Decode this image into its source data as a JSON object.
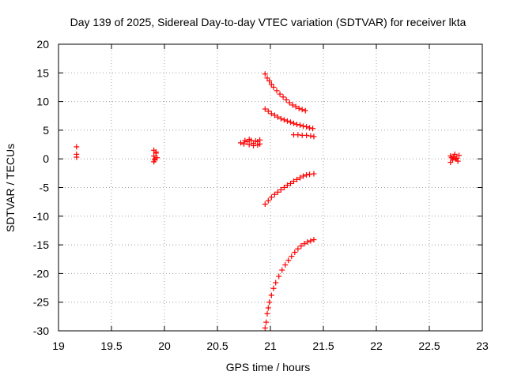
{
  "chart_data": {
    "type": "scatter",
    "title": "Day 139 of 2025, Sidereal Day-to-day VTEC variation (SDTVAR) for receiver lkta",
    "xlabel": "GPS time / hours",
    "ylabel": "SDTVAR / TECUs",
    "xlim": [
      19,
      23
    ],
    "ylim": [
      -30,
      20
    ],
    "xticks": [
      "19",
      "19.5",
      "20",
      "20.5",
      "21",
      "21.5",
      "22",
      "22.5",
      "23"
    ],
    "yticks": [
      "20",
      "15",
      "10",
      "5",
      "0",
      "-5",
      "-10",
      "-15",
      "-20",
      "-25",
      "-30"
    ],
    "grid": true,
    "marker": "plus",
    "color": "#ff0000",
    "series": [
      {
        "points": [
          [
            19.17,
            2.1
          ],
          [
            19.17,
            0.8
          ],
          [
            19.17,
            0.3
          ]
        ]
      },
      {
        "points": [
          [
            19.9,
            1.5
          ],
          [
            19.92,
            1.0
          ],
          [
            19.9,
            0.5
          ],
          [
            19.93,
            0.2
          ],
          [
            19.91,
            -0.2
          ],
          [
            19.9,
            -0.5
          ],
          [
            19.92,
            1.2
          ],
          [
            19.91,
            0.0
          ]
        ]
      },
      {
        "points": [
          [
            20.72,
            2.8
          ],
          [
            20.75,
            2.6
          ],
          [
            20.78,
            3.0
          ],
          [
            20.8,
            2.5
          ],
          [
            20.82,
            3.2
          ],
          [
            20.84,
            2.7
          ],
          [
            20.86,
            3.1
          ],
          [
            20.88,
            2.4
          ],
          [
            20.9,
            3.3
          ],
          [
            20.76,
            3.2
          ],
          [
            20.8,
            3.4
          ],
          [
            20.84,
            2.3
          ],
          [
            20.88,
            3.0
          ],
          [
            20.9,
            2.6
          ]
        ]
      },
      {
        "points": [
          [
            20.95,
            14.8
          ],
          [
            20.97,
            14.1
          ],
          [
            20.99,
            13.6
          ],
          [
            21.01,
            13.0
          ],
          [
            21.03,
            12.5
          ],
          [
            21.06,
            11.9
          ],
          [
            21.09,
            11.3
          ],
          [
            21.12,
            10.8
          ],
          [
            21.15,
            10.3
          ],
          [
            21.18,
            9.8
          ],
          [
            21.21,
            9.4
          ],
          [
            21.24,
            9.1
          ],
          [
            21.27,
            8.8
          ],
          [
            21.3,
            8.6
          ],
          [
            21.33,
            8.4
          ]
        ]
      },
      {
        "points": [
          [
            20.95,
            8.7
          ],
          [
            20.98,
            8.3
          ],
          [
            21.01,
            7.9
          ],
          [
            21.04,
            7.6
          ],
          [
            21.07,
            7.3
          ],
          [
            21.1,
            7.0
          ],
          [
            21.13,
            6.8
          ],
          [
            21.16,
            6.6
          ],
          [
            21.19,
            6.4
          ],
          [
            21.22,
            6.2
          ],
          [
            21.25,
            6.0
          ],
          [
            21.28,
            5.9
          ],
          [
            21.31,
            5.7
          ],
          [
            21.34,
            5.6
          ],
          [
            21.37,
            5.4
          ],
          [
            21.4,
            5.3
          ]
        ]
      },
      {
        "points": [
          [
            21.22,
            4.2
          ],
          [
            21.26,
            4.2
          ],
          [
            21.3,
            4.1
          ],
          [
            21.34,
            4.1
          ],
          [
            21.38,
            4.0
          ],
          [
            21.41,
            3.9
          ]
        ]
      },
      {
        "points": [
          [
            20.95,
            -7.9
          ],
          [
            20.98,
            -7.3
          ],
          [
            21.01,
            -6.7
          ],
          [
            21.04,
            -6.2
          ],
          [
            21.07,
            -5.8
          ],
          [
            21.1,
            -5.4
          ],
          [
            21.13,
            -5.0
          ],
          [
            21.16,
            -4.6
          ],
          [
            21.19,
            -4.3
          ],
          [
            21.22,
            -3.9
          ],
          [
            21.25,
            -3.6
          ],
          [
            21.28,
            -3.3
          ],
          [
            21.31,
            -3.0
          ],
          [
            21.34,
            -2.8
          ],
          [
            21.37,
            -2.7
          ],
          [
            21.41,
            -2.6
          ]
        ]
      },
      {
        "points": [
          [
            20.95,
            -29.5
          ],
          [
            20.96,
            -28.5
          ],
          [
            20.97,
            -27.0
          ],
          [
            20.98,
            -26.0
          ],
          [
            20.99,
            -25.0
          ],
          [
            21.01,
            -23.8
          ],
          [
            21.03,
            -22.6
          ],
          [
            21.05,
            -21.6
          ],
          [
            21.08,
            -20.5
          ],
          [
            21.11,
            -19.4
          ],
          [
            21.14,
            -18.5
          ],
          [
            21.17,
            -17.7
          ],
          [
            21.2,
            -17.0
          ],
          [
            21.23,
            -16.3
          ],
          [
            21.26,
            -15.7
          ],
          [
            21.29,
            -15.2
          ],
          [
            21.32,
            -14.8
          ],
          [
            21.35,
            -14.5
          ],
          [
            21.38,
            -14.3
          ],
          [
            21.41,
            -14.1
          ]
        ]
      },
      {
        "points": [
          [
            22.7,
            0.5
          ],
          [
            22.72,
            -0.2
          ],
          [
            22.74,
            0.8
          ],
          [
            22.76,
            0.1
          ],
          [
            22.78,
            0.6
          ],
          [
            22.7,
            -0.6
          ],
          [
            22.73,
            0.3
          ],
          [
            22.77,
            -0.4
          ],
          [
            22.75,
            0.0
          ],
          [
            22.71,
            0.2
          ]
        ]
      }
    ]
  }
}
